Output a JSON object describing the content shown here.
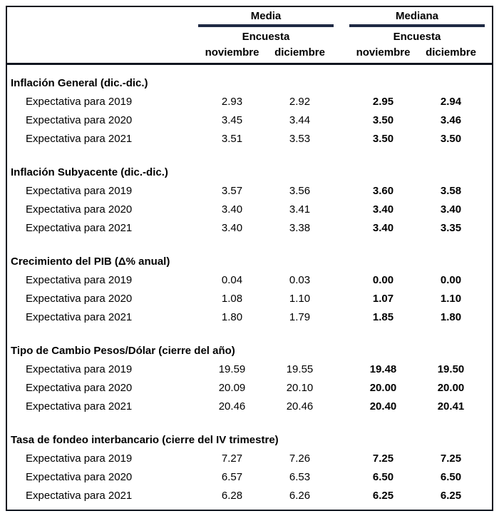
{
  "table": {
    "header": {
      "media_label": "Media",
      "mediana_label": "Mediana",
      "media_sub": "Encuesta",
      "mediana_sub": "Encuesta",
      "columns": [
        "noviembre",
        "diciembre",
        "noviembre",
        "diciembre"
      ]
    },
    "sections": [
      {
        "title": "Inflación General (dic.-dic.)",
        "rows": [
          {
            "label": "Expectativa para 2019",
            "values": [
              "2.93",
              "2.92",
              "2.95",
              "2.94"
            ]
          },
          {
            "label": "Expectativa para 2020",
            "values": [
              "3.45",
              "3.44",
              "3.50",
              "3.46"
            ]
          },
          {
            "label": "Expectativa para 2021",
            "values": [
              "3.51",
              "3.53",
              "3.50",
              "3.50"
            ]
          }
        ]
      },
      {
        "title": "Inflación Subyacente (dic.-dic.)",
        "rows": [
          {
            "label": "Expectativa para 2019",
            "values": [
              "3.57",
              "3.56",
              "3.60",
              "3.58"
            ]
          },
          {
            "label": "Expectativa para 2020",
            "values": [
              "3.40",
              "3.41",
              "3.40",
              "3.40"
            ]
          },
          {
            "label": "Expectativa para 2021",
            "values": [
              "3.40",
              "3.38",
              "3.40",
              "3.35"
            ]
          }
        ]
      },
      {
        "title": "Crecimiento del PIB (Δ% anual)",
        "rows": [
          {
            "label": "Expectativa para 2019",
            "values": [
              "0.04",
              "0.03",
              "0.00",
              "0.00"
            ]
          },
          {
            "label": "Expectativa para 2020",
            "values": [
              "1.08",
              "1.10",
              "1.07",
              "1.10"
            ]
          },
          {
            "label": "Expectativa para 2021",
            "values": [
              "1.80",
              "1.79",
              "1.85",
              "1.80"
            ]
          }
        ]
      },
      {
        "title": "Tipo de Cambio Pesos/Dólar (cierre del año)",
        "rows": [
          {
            "label": "Expectativa para 2019",
            "values": [
              "19.59",
              "19.55",
              "19.48",
              "19.50"
            ]
          },
          {
            "label": "Expectativa para 2020",
            "values": [
              "20.09",
              "20.10",
              "20.00",
              "20.00"
            ]
          },
          {
            "label": "Expectativa para 2021",
            "values": [
              "20.46",
              "20.46",
              "20.40",
              "20.41"
            ]
          }
        ]
      },
      {
        "title": "Tasa de fondeo interbancario (cierre del IV trimestre)",
        "rows": [
          {
            "label": "Expectativa para 2019",
            "values": [
              "7.27",
              "7.26",
              "7.25",
              "7.25"
            ]
          },
          {
            "label": "Expectativa para 2020",
            "values": [
              "6.57",
              "6.53",
              "6.50",
              "6.50"
            ]
          },
          {
            "label": "Expectativa para 2021",
            "values": [
              "6.28",
              "6.26",
              "6.25",
              "6.25"
            ]
          }
        ]
      }
    ],
    "colors": {
      "group_rule": "#1f2a44",
      "border": "#10151f",
      "text": "#000000"
    }
  }
}
